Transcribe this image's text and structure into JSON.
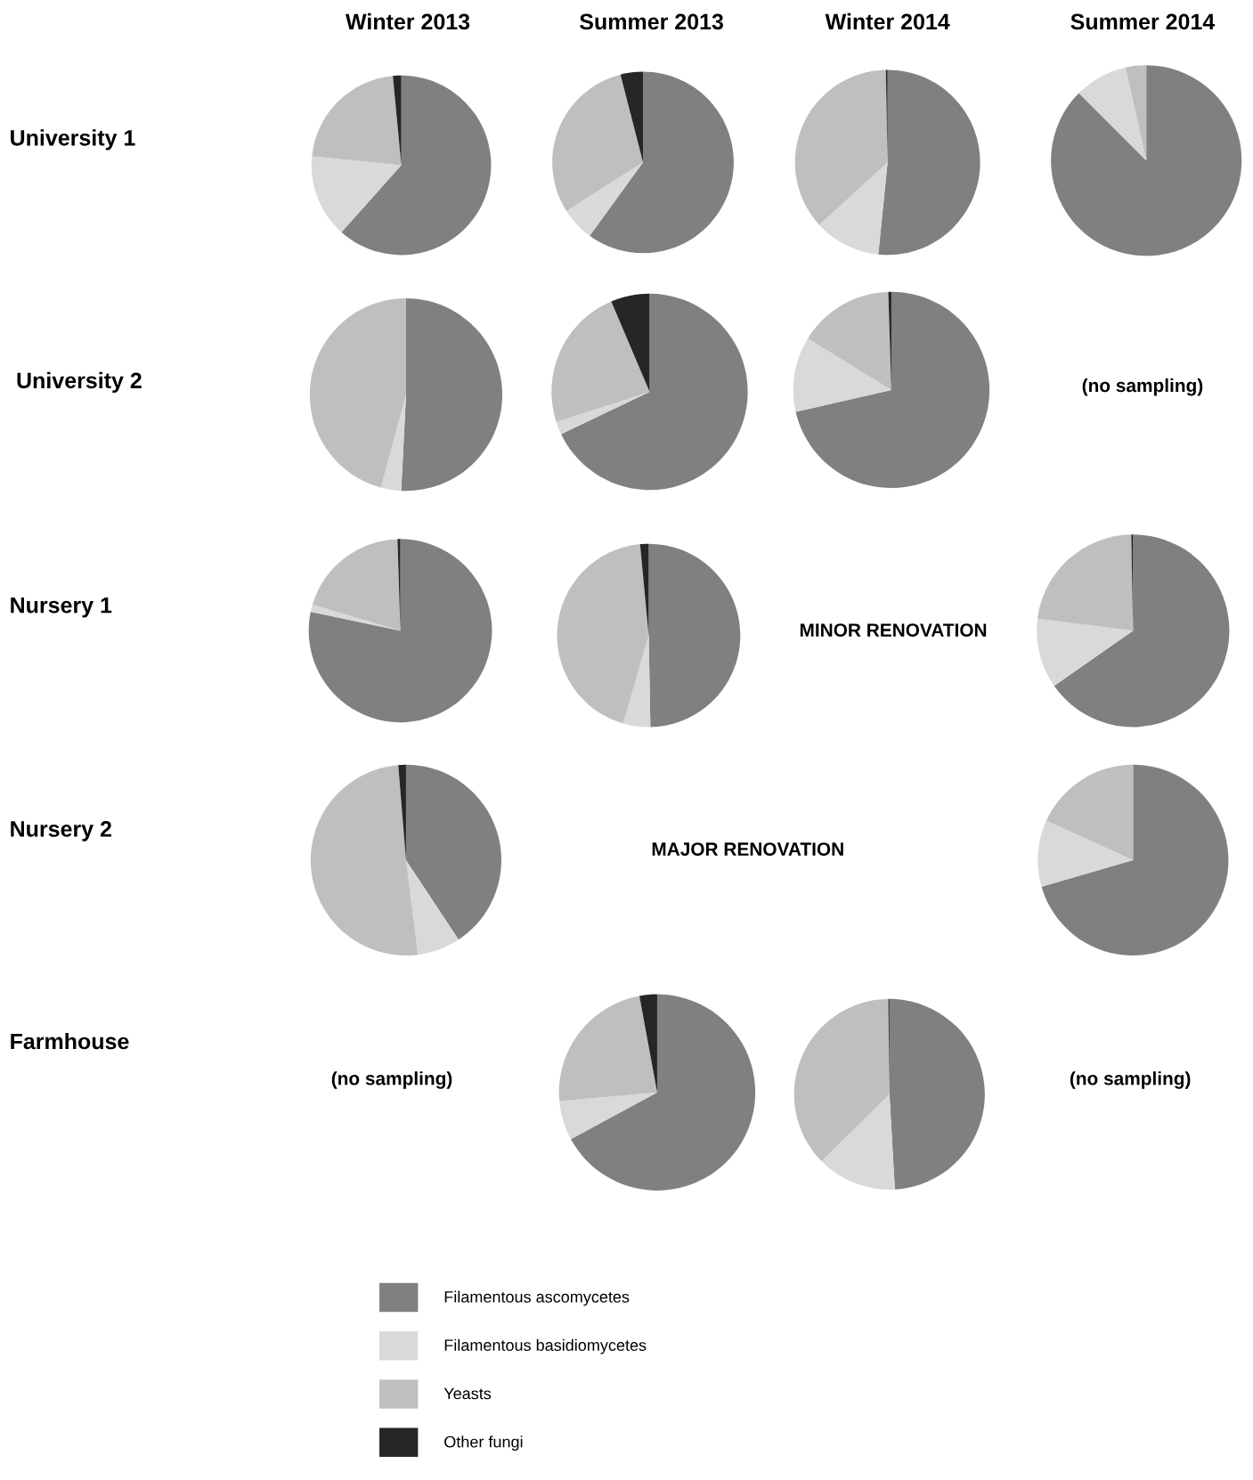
{
  "chart_data": [
    {
      "type": "pie",
      "categories": [
        "Filamentous ascomycetes",
        "Filamentous basidiomycetes",
        "Yeasts",
        "Other fungi"
      ],
      "colors": [
        "#808080",
        "#d9d9d9",
        "#bfbfbf",
        "#262626"
      ],
      "values": [
        61.6,
        15,
        21.9,
        1.5
      ],
      "legend": "bottom"
    },
    {
      "type": "pie",
      "categories": [
        null,
        null,
        null,
        null
      ],
      "colors": [
        "#808080",
        "#d9d9d9",
        "#bfbfbf",
        "#262626"
      ],
      "values": [
        60,
        6,
        30,
        4
      ]
    },
    {
      "type": "pie",
      "categories": [
        null,
        null,
        null,
        null
      ],
      "colors": [
        "#808080",
        "#d9d9d9",
        "#bfbfbf",
        "#262626"
      ],
      "values": [
        51.6,
        11.6,
        36.5,
        0.3
      ]
    },
    {
      "type": "pie",
      "categories": [
        null,
        null,
        null,
        null
      ],
      "colors": [
        "#808080",
        "#d9d9d9",
        "#bfbfbf",
        "#262626"
      ],
      "values": [
        87.5,
        9,
        3.5,
        0
      ]
    },
    {
      "type": "pie",
      "categories": [
        null,
        null,
        null,
        null
      ],
      "colors": [
        "#808080",
        "#d9d9d9",
        "#bfbfbf",
        "#262626"
      ],
      "values": [
        50.8,
        3.4,
        45.8,
        0
      ]
    },
    {
      "type": "pie",
      "categories": [
        null,
        null,
        null,
        null
      ],
      "colors": [
        "#808080",
        "#d9d9d9",
        "#bfbfbf",
        "#262626"
      ],
      "values": [
        67.9,
        2.1,
        23.6,
        6.4
      ]
    },
    {
      "type": "pie",
      "categories": [
        null,
        null,
        null,
        null
      ],
      "colors": [
        "#808080",
        "#d9d9d9",
        "#bfbfbf",
        "#262626"
      ],
      "values": [
        71.4,
        12.4,
        15.7,
        0.5
      ]
    },
    {
      "type": "pie",
      "categories": [
        null,
        null,
        null,
        null
      ],
      "colors": [
        "#808080",
        "#d9d9d9",
        "#bfbfbf",
        "#262626"
      ],
      "values": [
        78.3,
        1.3,
        19.9,
        0.5
      ]
    },
    {
      "type": "pie",
      "categories": [
        null,
        null,
        null,
        null
      ],
      "colors": [
        "#808080",
        "#d9d9d9",
        "#bfbfbf",
        "#262626"
      ],
      "values": [
        49.7,
        4.8,
        44,
        1.5
      ]
    },
    {
      "type": "pie",
      "categories": [
        null,
        null,
        null,
        null
      ],
      "colors": [
        "#808080",
        "#d9d9d9",
        "#bfbfbf",
        "#262626"
      ],
      "values": [
        65.3,
        11.7,
        22.7,
        0.3
      ]
    },
    {
      "type": "pie",
      "categories": [
        null,
        null,
        null,
        null
      ],
      "colors": [
        "#808080",
        "#d9d9d9",
        "#bfbfbf",
        "#262626"
      ],
      "values": [
        40.7,
        7.3,
        50.7,
        1.3
      ]
    },
    {
      "type": "pie",
      "categories": [
        null,
        null,
        null,
        null
      ],
      "colors": [
        "#808080",
        "#d9d9d9",
        "#bfbfbf",
        "#262626"
      ],
      "values": [
        70.5,
        11.3,
        18.2,
        0
      ]
    },
    {
      "type": "pie",
      "categories": [
        null,
        null,
        null,
        null
      ],
      "colors": [
        "#808080",
        "#d9d9d9",
        "#bfbfbf",
        "#262626"
      ],
      "values": [
        67.1,
        6.5,
        23.5,
        2.9
      ]
    },
    {
      "type": "pie",
      "categories": [
        null,
        null,
        null,
        null
      ],
      "colors": [
        "#808080",
        "#d9d9d9",
        "#bfbfbf",
        "#262626"
      ],
      "values": [
        49.1,
        13.5,
        37.2,
        0.2
      ]
    },
    {
      "type": "other",
      "annotations": [
        "Winter 2013",
        "Summer 2013",
        "Winter 2014",
        "Summer 2014",
        "University 1",
        "University 2",
        "Nursery 1",
        "Nursery 2",
        "Farmhouse",
        "(no sampling)",
        "MINOR RENOVATION",
        "MAJOR RENOVATION",
        "(no sampling)",
        "(no sampling)"
      ]
    }
  ]
}
